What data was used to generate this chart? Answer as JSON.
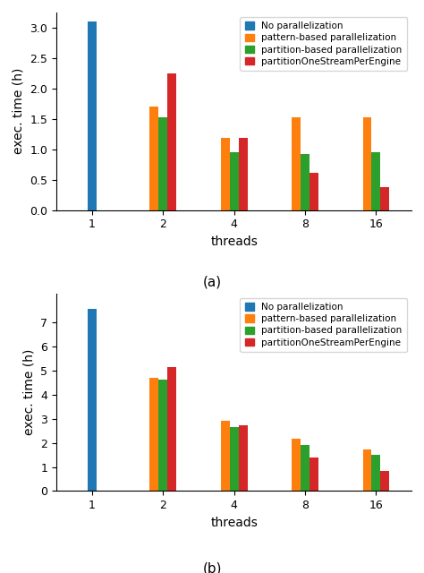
{
  "chart_a": {
    "title": "(a)",
    "ylabel": "exec. time (h)",
    "xlabel": "threads",
    "no_par": 3.1,
    "pattern_based": [
      1.7,
      1.18,
      1.52,
      1.53
    ],
    "partition_based": [
      1.52,
      0.95,
      0.92,
      0.95
    ],
    "partition_one": [
      2.25,
      1.18,
      0.61,
      0.38
    ],
    "ylim": [
      0,
      3.25
    ],
    "yticks": [
      0.0,
      0.5,
      1.0,
      1.5,
      2.0,
      2.5,
      3.0
    ]
  },
  "chart_b": {
    "title": "(b)",
    "ylabel": "exec. time (h)",
    "xlabel": "threads",
    "no_par": 7.55,
    "pattern_based": [
      4.7,
      2.92,
      2.18,
      1.72
    ],
    "partition_based": [
      4.62,
      2.65,
      1.9,
      1.5
    ],
    "partition_one": [
      5.15,
      2.73,
      1.4,
      0.85
    ],
    "ylim": [
      0,
      8.2
    ],
    "yticks": [
      0,
      1,
      2,
      3,
      4,
      5,
      6,
      7
    ]
  },
  "colors": {
    "no_par": "#1f77b4",
    "pattern_based": "#ff7f0e",
    "partition_based": "#2ca02c",
    "partition_one": "#d62728"
  },
  "legend_labels": [
    "No parallelization",
    "pattern-based parallelization",
    "partition-based parallelization",
    "partitionOneStreamPerEngine"
  ],
  "bar_width": 0.25,
  "thread_labels": [
    "1",
    "2",
    "4",
    "8",
    "16"
  ],
  "group_centers": [
    0.5,
    2.5,
    4.5,
    6.5,
    8.5
  ]
}
